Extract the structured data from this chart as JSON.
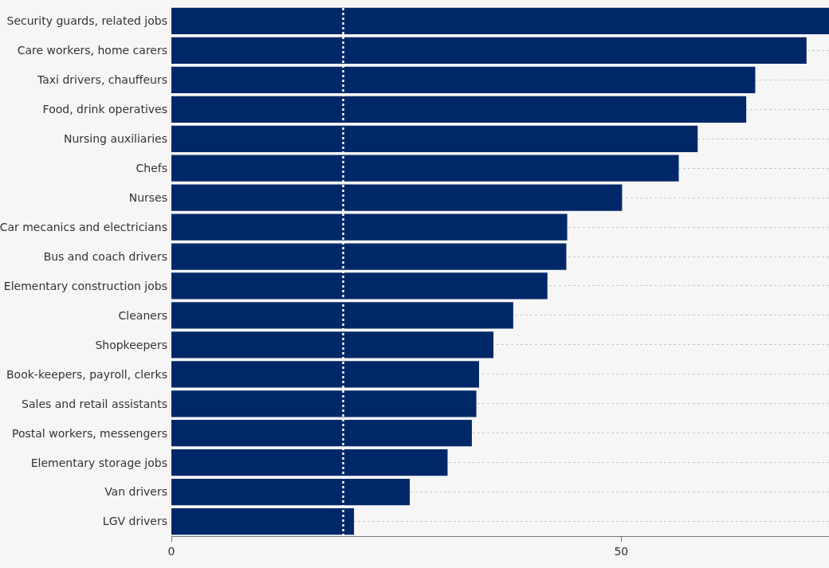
{
  "chart_data": {
    "type": "bar",
    "orientation": "horizontal",
    "categories": [
      "Security guards, related jobs",
      "Care workers, home carers",
      "Taxi drivers, chauffeurs",
      "Food, drink operatives",
      "Nursing auxiliaries",
      "Chefs",
      "Nurses",
      "Car mecanics and electricians",
      "Bus and coach drivers",
      "Elementary construction jobs",
      "Cleaners",
      "Shopkeepers",
      "Book-keepers, payroll, clerks",
      "Sales and retail assistants",
      "Postal workers, messengers",
      "Elementary storage jobs",
      "Van drivers",
      "LGV drivers"
    ],
    "values": [
      73.1,
      70.6,
      64.9,
      63.9,
      58.5,
      56.4,
      50.1,
      44.0,
      43.9,
      41.8,
      38.0,
      35.8,
      34.2,
      33.9,
      33.4,
      30.7,
      26.5,
      20.3
    ],
    "color": "#002868",
    "xlim": [
      0,
      73.1
    ],
    "xticks": [
      0,
      50
    ],
    "grid": "y",
    "ref_lines": [
      {
        "axis": "x",
        "value": 19.1,
        "color": "#ffffff",
        "line_style": "dotted"
      }
    ]
  }
}
